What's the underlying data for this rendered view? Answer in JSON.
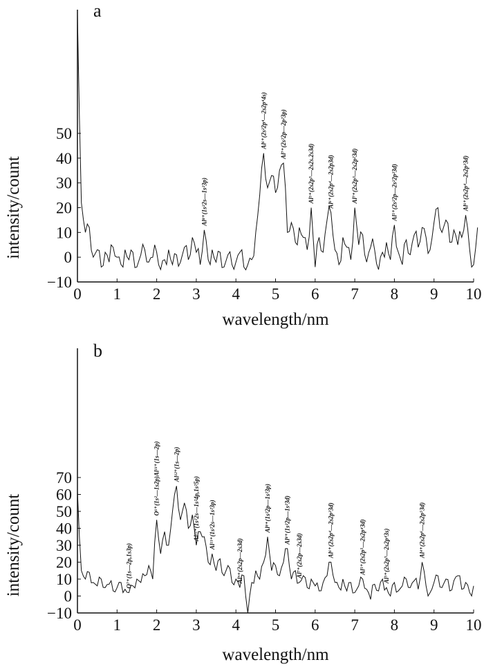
{
  "chart_data": [
    {
      "type": "line",
      "panel_label": "a",
      "xlabel": "wavelength/nm",
      "ylabel": "intensity/count",
      "xlim": [
        0,
        10
      ],
      "ylim": [
        -10,
        50
      ],
      "xticks": [
        "0",
        "1",
        "2",
        "3",
        "4",
        "5",
        "6",
        "7",
        "8",
        "9",
        "10"
      ],
      "yticks": [
        "−10",
        "0",
        "10",
        "20",
        "30",
        "40",
        "50"
      ],
      "x_step": 0.1,
      "values": [
        98,
        22,
        10,
        12,
        0,
        3,
        -4,
        2,
        -2,
        4,
        0,
        -3,
        3,
        -1,
        2,
        -4,
        1,
        3,
        -2,
        0,
        2,
        -5,
        -1,
        3,
        -3,
        1,
        -2,
        4,
        -1,
        8,
        2,
        -3,
        11,
        -1,
        3,
        -2,
        2,
        -4,
        1,
        -3,
        -2,
        2,
        -4,
        -3,
        -1,
        10,
        25,
        42,
        28,
        33,
        26,
        35,
        38,
        10,
        14,
        6,
        12,
        8,
        3,
        20,
        -4,
        8,
        2,
        15,
        18,
        3,
        -3,
        8,
        4,
        -1,
        20,
        5,
        9,
        -2,
        4,
        3,
        -5,
        2,
        6,
        -1,
        13,
        2,
        -3,
        7,
        1,
        9,
        4,
        12,
        8,
        3,
        14,
        20,
        10,
        15,
        6,
        11,
        5,
        8,
        17,
        3,
        -3,
        12
      ],
      "annotations": [
        {
          "x": 3.2,
          "label": "Al⁸⁺(1s²2s—1s²3p)"
        },
        {
          "x": 4.7,
          "label": "Al⁶⁺(2s²2p⁴—2s2p⁴4s)"
        },
        {
          "x": 5.2,
          "label": "Al⁷⁺(2s²2p—2p²3p)"
        },
        {
          "x": 5.9,
          "label": "Al⁵⁺(2s2p⁵—2s2s.2s3d)"
        },
        {
          "x": 6.4,
          "label": "Al⁶⁺(2s2p⁴—2s2p3d)"
        },
        {
          "x": 7.0,
          "label": "Al⁷⁺(2s2p³—2s2p²3d)"
        },
        {
          "x": 8.0,
          "label": "Al⁵⁺(2s²2p—2s²2p²3d)"
        },
        {
          "x": 9.8,
          "label": "Al⁶⁺(2s2p⁴—2s2p³3d)"
        }
      ]
    },
    {
      "type": "line",
      "panel_label": "b",
      "xlabel": "wavelength/nm",
      "ylabel": "intensity/count",
      "xlim": [
        0,
        10
      ],
      "ylim": [
        -10,
        70
      ],
      "xticks": [
        "0",
        "1",
        "2",
        "3",
        "4",
        "5",
        "6",
        "7",
        "8",
        "9",
        "10"
      ],
      "yticks": [
        "−10",
        "0",
        "10",
        "20",
        "30",
        "40",
        "50",
        "60",
        "70"
      ],
      "x_step": 0.1,
      "values": [
        62,
        15,
        10,
        14,
        8,
        6,
        10,
        5,
        7,
        3,
        5,
        8,
        4,
        2,
        6,
        10,
        8,
        12,
        18,
        10,
        45,
        25,
        38,
        30,
        50,
        65,
        45,
        55,
        40,
        48,
        30,
        38,
        35,
        20,
        25,
        15,
        22,
        12,
        18,
        8,
        10,
        5,
        12,
        -10,
        8,
        15,
        10,
        20,
        35,
        15,
        18,
        12,
        20,
        28,
        10,
        15,
        8,
        12,
        5,
        10,
        6,
        3,
        8,
        12,
        20,
        8,
        5,
        10,
        3,
        8,
        2,
        6,
        10,
        4,
        -2,
        7,
        3,
        10,
        5,
        0,
        8,
        3,
        6,
        10,
        5,
        9,
        4,
        20,
        6,
        2,
        8,
        12,
        5,
        10,
        3,
        9,
        12,
        4,
        8,
        2,
        6
      ],
      "annotations": [
        {
          "x": 1.3,
          "label": "O⁷⁺(1s—2p,1s3p)"
        },
        {
          "x": 2.0,
          "label": "O⁶⁺(1s²—1s2p)Al¹¹⁺(1s—2p)"
        },
        {
          "x": 2.5,
          "label": "Al¹²⁺(1s—2p)"
        },
        {
          "x": 3.0,
          "label": "Al¹¹⁺(1s²2s—1s²4p,1s²5p)"
        },
        {
          "x": 3.4,
          "label": "Al¹¹⁺(1s²2s—1s²3p)"
        },
        {
          "x": 4.1,
          "label": "Al⁹⁺(2s2p—2s3d)"
        },
        {
          "x": 4.8,
          "label": "Al⁸⁺(1s²2p—1s²3p)"
        },
        {
          "x": 5.3,
          "label": "Al⁸⁺(1s²2p—1s²3d)"
        },
        {
          "x": 5.6,
          "label": "Al⁷⁺(2s2p—2s3d)"
        },
        {
          "x": 6.4,
          "label": "Al⁶⁺(2s2p⁴—2s2p³3d)"
        },
        {
          "x": 7.2,
          "label": "Al⁵⁺(2s2p⁵—2s2p⁴3d)"
        },
        {
          "x": 7.8,
          "label": "Al⁵⁺(2s2p⁵—2s2p⁴3s)"
        },
        {
          "x": 8.7,
          "label": "Al⁴⁺(2s2p⁶—2s2p⁵3d)"
        }
      ]
    }
  ]
}
